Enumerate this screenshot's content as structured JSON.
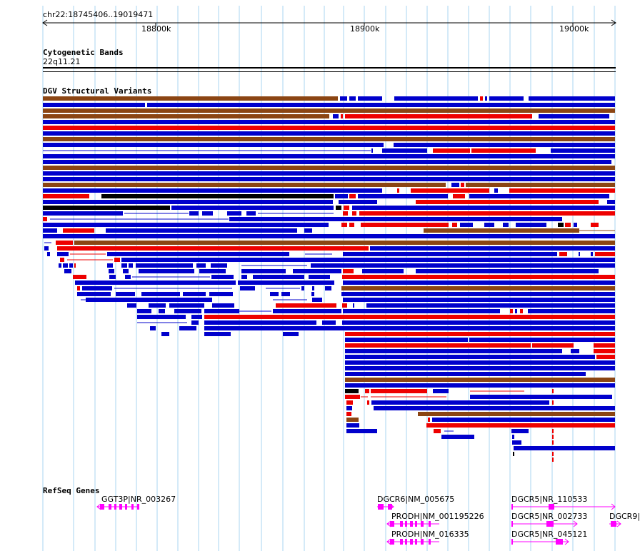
{
  "ruler": {
    "location": "chr22:18745406..19019471",
    "ticks": [
      "18800k",
      "18900k",
      "19000k"
    ]
  },
  "tracks": {
    "cytoband": {
      "title": "Cytogenetic Bands",
      "band": "22q11.21"
    },
    "dgv": {
      "title": "DGV Structural Variants"
    },
    "refseq": {
      "title": "RefSeq Genes"
    }
  },
  "genes": [
    {
      "label": "GGT3P|NR_003267",
      "strand": "-"
    },
    {
      "label": "DGCR6|NM_005675",
      "strand": "+"
    },
    {
      "label": "PRODH|NM_001195226",
      "strand": "-"
    },
    {
      "label": "PRODH|NM_016335",
      "strand": "-"
    },
    {
      "label": "DGCR5|NR_110533",
      "strand": "+"
    },
    {
      "label": "DGCR5|NR_002733",
      "strand": "+"
    },
    {
      "label": "DGCR5|NR_045121",
      "strand": "+"
    },
    {
      "label": "DGCR9|",
      "strand": "+"
    }
  ],
  "colors": {
    "gain": "#0000cc",
    "loss": "#ee0000",
    "both": "#8b4513",
    "other": "#000000",
    "gene": "#ff00ff",
    "grid": "#a8d4f0"
  }
}
